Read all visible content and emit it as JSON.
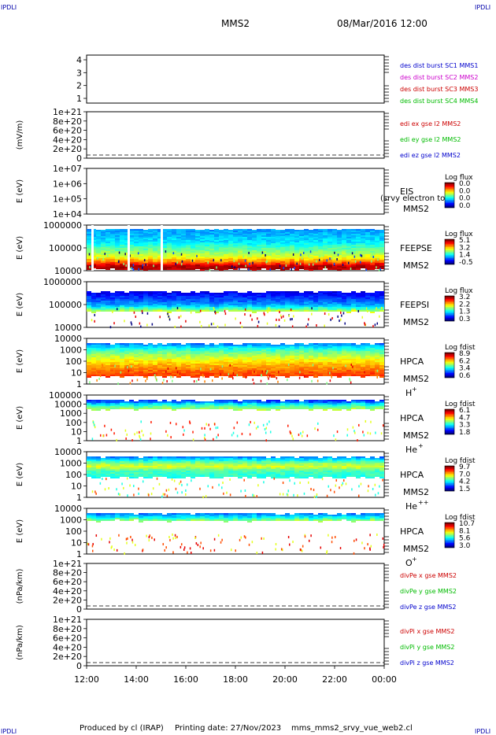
{
  "header": {
    "corner_tl": "IPDLI",
    "corner_tr": "IPDLI",
    "corner_bl": "IPDLI",
    "corner_br": "IPDLI",
    "spacecraft": "MMS2",
    "datetime": "08/Mar/2016 12:00"
  },
  "footer": {
    "produced_by": "Produced by cl (IRAP)",
    "printing_date": "Printing date: 27/Nov/2023",
    "script_name": "mms_mms2_srvy_vue_web2.cl"
  },
  "chart_data": {
    "type": "heatmap",
    "x_ticks": [
      "12:00",
      "14:00",
      "16:00",
      "18:00",
      "20:00",
      "22:00",
      "00:00"
    ],
    "panels": [
      {
        "kind": "line",
        "ylabel": "",
        "y_ticks": [
          "4",
          "3",
          "2",
          "1"
        ],
        "legend": [
          {
            "text": "des dist burst SC1 MMS1",
            "color": "#0000cc"
          },
          {
            "text": "des dist burst SC2 MMS2",
            "color": "#cc00cc"
          },
          {
            "text": "des dist burst SC3 MMS3",
            "color": "#cc0000"
          },
          {
            "text": "des dist burst SC4 MMS4",
            "color": "#00bb00"
          }
        ]
      },
      {
        "kind": "line",
        "ylabel": "(mV/m)",
        "y_ticks": [
          "1e+21",
          "8e+20",
          "6e+20",
          "4e+20",
          "2e+20",
          "0"
        ],
        "legend": [
          {
            "text": "edi ex gse l2 MMS2",
            "color": "#cc0000"
          },
          {
            "text": "edi ey gse l2 MMS2",
            "color": "#00bb00"
          },
          {
            "text": "edi ez gse l2 MMS2",
            "color": "#0000cc"
          }
        ]
      },
      {
        "kind": "spectrogram",
        "ylabel": "E (eV)",
        "y_ticks": [
          "1e+07",
          "1e+06",
          "1e+05",
          "1e+04"
        ],
        "instrument": "EIS",
        "instrument_note": "(srvy electron to",
        "spacecraft": "MMS2",
        "species": "",
        "cbar_title": "Log flux",
        "cbar_ticks": [
          "0.0",
          "0.0",
          "0.0",
          "0.0"
        ],
        "fill": "empty"
      },
      {
        "kind": "spectrogram",
        "ylabel": "E (eV)",
        "y_ticks": [
          "1000000",
          "100000",
          "10000"
        ],
        "instrument": "FEEPSE",
        "spacecraft": "MMS2",
        "species": "",
        "cbar_title": "Log flux",
        "cbar_ticks": [
          "5.1",
          "3.2",
          "1.4",
          "-0.5"
        ],
        "fill": "feepse"
      },
      {
        "kind": "spectrogram",
        "ylabel": "E (eV)",
        "y_ticks": [
          "1000000",
          "100000",
          "10000"
        ],
        "instrument": "FEEPSI",
        "spacecraft": "MMS2",
        "species": "",
        "cbar_title": "Log flux",
        "cbar_ticks": [
          "3.2",
          "2.2",
          "1.3",
          "0.3"
        ],
        "fill": "feepsi"
      },
      {
        "kind": "spectrogram",
        "ylabel": "E (eV)",
        "y_ticks": [
          "10000",
          "1000",
          "100",
          "10",
          "1"
        ],
        "instrument": "HPCA",
        "spacecraft": "MMS2",
        "species": "H",
        "species_sup": "+",
        "cbar_title": "Log fdist",
        "cbar_ticks": [
          "8.9",
          "6.2",
          "3.4",
          "0.6"
        ],
        "fill": "hplus"
      },
      {
        "kind": "spectrogram",
        "ylabel": "E (eV)",
        "y_ticks": [
          "100000",
          "10000",
          "1000",
          "100",
          "10",
          "1"
        ],
        "instrument": "HPCA",
        "spacecraft": "MMS2",
        "species": "He",
        "species_sup": "+",
        "cbar_title": "Log fdist",
        "cbar_ticks": [
          "6.1",
          "4.7",
          "3.3",
          "1.8"
        ],
        "fill": "heplus"
      },
      {
        "kind": "spectrogram",
        "ylabel": "E (eV)",
        "y_ticks": [
          "10000",
          "1000",
          "100",
          "10",
          "1"
        ],
        "instrument": "HPCA",
        "spacecraft": "MMS2",
        "species": "He",
        "species_sup": "++",
        "cbar_title": "Log fdist",
        "cbar_ticks": [
          "9.7",
          "7.0",
          "4.2",
          "1.5"
        ],
        "fill": "hepp"
      },
      {
        "kind": "spectrogram",
        "ylabel": "E (eV)",
        "y_ticks": [
          "10000",
          "1000",
          "100",
          "10",
          "1"
        ],
        "instrument": "HPCA",
        "spacecraft": "MMS2",
        "species": "O",
        "species_sup": "+",
        "cbar_title": "Log fdist",
        "cbar_ticks": [
          "10.7",
          "8.1",
          "5.6",
          "3.0"
        ],
        "fill": "oplus"
      },
      {
        "kind": "line",
        "ylabel": "(nPa/km)",
        "y_ticks": [
          "1e+21",
          "8e+20",
          "6e+20",
          "4e+20",
          "2e+20",
          "0"
        ],
        "legend": [
          {
            "text": "divPe x gse MMS2",
            "color": "#cc0000"
          },
          {
            "text": "divPe y gse MMS2",
            "color": "#00bb00"
          },
          {
            "text": "divPe z gse MMS2",
            "color": "#0000cc"
          }
        ]
      },
      {
        "kind": "line",
        "ylabel": "(nPa/km)",
        "y_ticks": [
          "1e+21",
          "8e+20",
          "6e+20",
          "4e+20",
          "2e+20",
          "0"
        ],
        "legend": [
          {
            "text": "divPi x gse MMS2",
            "color": "#cc0000"
          },
          {
            "text": "divPi y gse MMS2",
            "color": "#00bb00"
          },
          {
            "text": "divPi z gse MMS2",
            "color": "#0000cc"
          }
        ]
      }
    ]
  }
}
